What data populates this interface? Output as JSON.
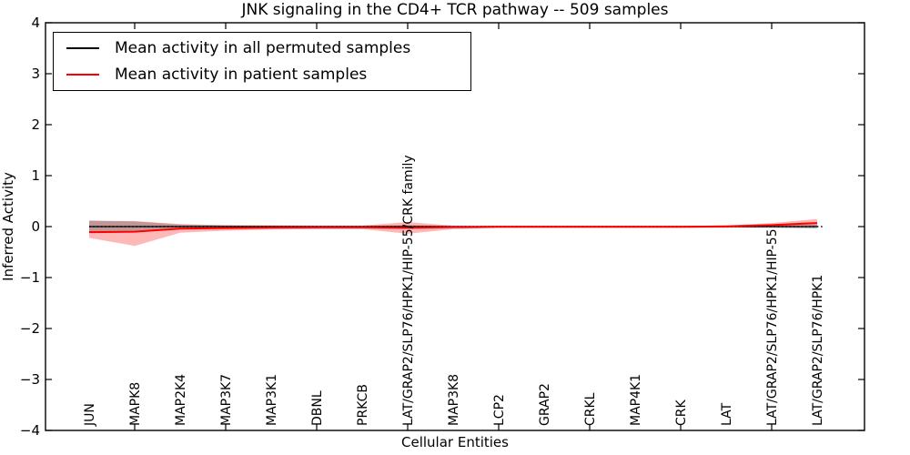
{
  "title": "JNK signaling in the CD4+ TCR pathway -- 509 samples",
  "legend": {
    "entries": [
      {
        "label": "Mean activity in all permuted samples",
        "color": "#000000"
      },
      {
        "label": "Mean activity in patient samples",
        "color": "#ff0000"
      }
    ],
    "position": "upper left"
  },
  "chart_data": {
    "type": "line",
    "title": "JNK signaling in the CD4+ TCR pathway -- 509 samples",
    "xlabel": "Cellular Entities",
    "ylabel": "Inferred Activity",
    "ylim": [
      -4,
      4
    ],
    "ytick_values": [
      -4,
      -3,
      -2,
      -1,
      0,
      1,
      2,
      3,
      4
    ],
    "ytick_labels": [
      "−4",
      "−3",
      "−2",
      "−1",
      "0",
      "1",
      "2",
      "3",
      "4"
    ],
    "grid": false,
    "legend_position": "upper left",
    "zero_reference_line": {
      "y": 0,
      "style": "dotted",
      "color": "#000000"
    },
    "categories": [
      "JUN",
      "MAPK8",
      "MAP2K4",
      "MAP3K7",
      "MAP3K1",
      "DBNL",
      "PRKCB",
      "LAT/GRAP2/SLP76/HPK1/HIP-55/CRK family",
      "MAP3K8",
      "LCP2",
      "GRAP2",
      "CRKL",
      "MAP4K1",
      "CRK",
      "LAT",
      "LAT/GRAP2/SLP76/HPK1/HIP-55",
      "LAT/GRAP2/SLP76/HPK1"
    ],
    "xtick_mark_indices": [
      1,
      3,
      5,
      7,
      9,
      11,
      13,
      15
    ],
    "series": [
      {
        "name": "Mean activity in all permuted samples",
        "color": "#000000",
        "line_width": 1.3,
        "values": [
          0,
          0,
          0,
          0,
          0,
          0,
          0,
          0,
          0,
          0,
          0,
          0,
          0,
          0,
          0,
          0,
          0
        ],
        "band_color": "rgba(100,100,100,0.4)",
        "band_upper": [
          0.12,
          0.1,
          0.04,
          0.025,
          0.02,
          0.012,
          0.012,
          0.03,
          0.012,
          0.008,
          0.008,
          0.008,
          0.008,
          0.008,
          0.012,
          0.025,
          0.04
        ],
        "band_lower": [
          -0.12,
          -0.1,
          -0.04,
          -0.025,
          -0.02,
          -0.012,
          -0.012,
          -0.03,
          -0.012,
          -0.008,
          -0.008,
          -0.008,
          -0.008,
          -0.008,
          -0.012,
          -0.025,
          -0.04
        ]
      },
      {
        "name": "Mean activity in patient samples",
        "color": "#ff0000",
        "line_width": 2,
        "values": [
          -0.11,
          -0.1,
          -0.04,
          -0.03,
          -0.02,
          -0.015,
          -0.015,
          -0.025,
          -0.012,
          -0.005,
          -0.005,
          -0.005,
          -0.005,
          -0.005,
          0.005,
          0.03,
          0.07
        ],
        "band_color": "rgba(255,0,0,0.28)",
        "band_upper": [
          0.11,
          0.11,
          0.05,
          0.03,
          0.025,
          0.02,
          0.02,
          0.09,
          0.02,
          0.015,
          0.015,
          0.015,
          0.015,
          0.015,
          0.02,
          0.07,
          0.15
        ],
        "band_lower": [
          -0.22,
          -0.38,
          -0.12,
          -0.08,
          -0.06,
          -0.05,
          -0.05,
          -0.14,
          -0.05,
          -0.025,
          -0.025,
          -0.025,
          -0.025,
          -0.025,
          -0.025,
          -0.01,
          0.0
        ]
      }
    ]
  }
}
